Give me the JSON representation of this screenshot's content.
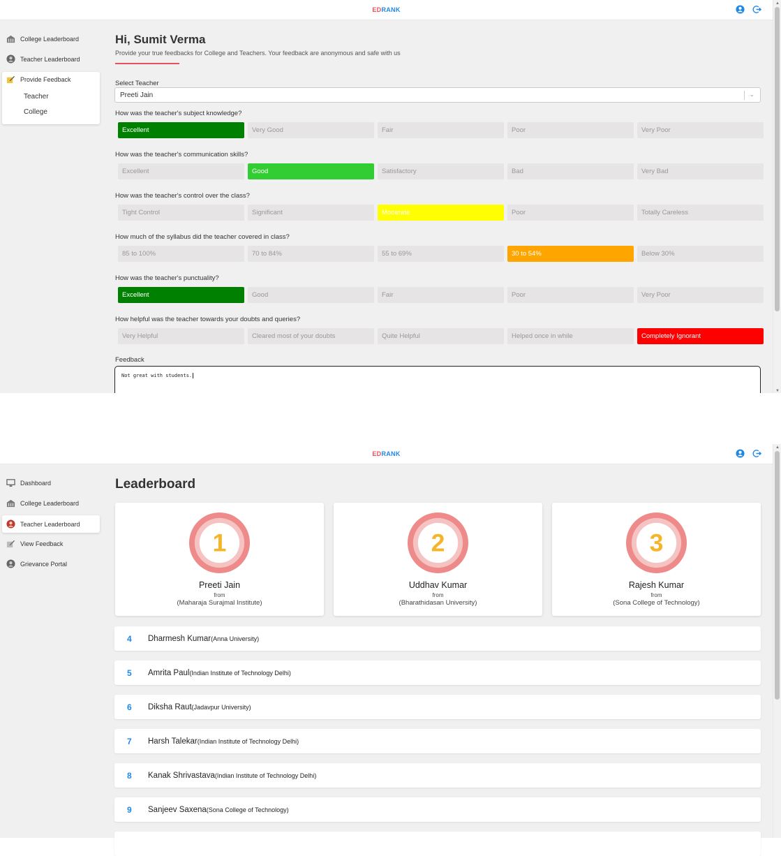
{
  "app": {
    "brand_ed": "ED",
    "brand_rank": "RANK"
  },
  "feedback_page": {
    "sidebar": {
      "college_leaderboard": "College Leaderboard",
      "teacher_leaderboard": "Teacher Leaderboard",
      "provide_feedback": "Provide Feedback",
      "sub_teacher": "Teacher",
      "sub_college": "College"
    },
    "greeting": "Hi, Sumit Verma",
    "subtitle": "Provide your true feedbacks for College and Teachers. Your feedback are anonymous and safe with us",
    "select_label": "Select Teacher",
    "selected_teacher": "Preeti Jain",
    "questions": [
      {
        "q": "How was the teacher's subject knowledge?",
        "options": [
          "Excellent",
          "Very Good",
          "Fair",
          "Poor",
          "Very Poor"
        ],
        "selected": 0,
        "selected_color": "#008000"
      },
      {
        "q": "How was the teacher's communication skills?",
        "options": [
          "Excellent",
          "Good",
          "Satisfactory",
          "Bad",
          "Very Bad"
        ],
        "selected": 1,
        "selected_color": "#32cd32"
      },
      {
        "q": "How was the teacher's control over the class?",
        "options": [
          "Tight Control",
          "Significant",
          "Moderate",
          "Poor",
          "Totally Careless"
        ],
        "selected": 2,
        "selected_color": "#ffff00"
      },
      {
        "q": "How much of the syllabus did the teacher covered in class?",
        "options": [
          "85 to 100%",
          "70 to 84%",
          "55 to 69%",
          "30 to 54%",
          "Below 30%"
        ],
        "selected": 3,
        "selected_color": "#ffa500"
      },
      {
        "q": "How was the teacher's punctuality?",
        "options": [
          "Excellent",
          "Good",
          "Fair",
          "Poor",
          "Very Poor"
        ],
        "selected": 0,
        "selected_color": "#008000"
      },
      {
        "q": "How helpful was the teacher towards your doubts and queries?",
        "options": [
          "Very Helpful",
          "Cleared most of your doubts",
          "Quite Helpful",
          "Helped once in while",
          "Completely Ignorant"
        ],
        "selected": 4,
        "selected_color": "#ff0000"
      }
    ],
    "feedback_label": "Feedback",
    "feedback_text": "Not great with students."
  },
  "leaderboard_page": {
    "sidebar": {
      "dashboard": "Dashboard",
      "college_leaderboard": "College Leaderboard",
      "teacher_leaderboard": "Teacher Leaderboard",
      "view_feedback": "View Feedback",
      "grievance_portal": "Grievance Portal"
    },
    "title": "Leaderboard",
    "from_label": "from",
    "top3": [
      {
        "rank": "1",
        "name": "Preeti Jain",
        "institute": "(Maharaja Surajmal Institute)"
      },
      {
        "rank": "2",
        "name": "Uddhav Kumar",
        "institute": "(Bharathidasan University)"
      },
      {
        "rank": "3",
        "name": "Rajesh Kumar",
        "institute": "(Sona College of Technology)"
      }
    ],
    "rows": [
      {
        "rank": "4",
        "name": "Dharmesh Kumar",
        "institute": "(Anna University)"
      },
      {
        "rank": "5",
        "name": "Amrita Paul",
        "institute": "(Indian Institute of Technology Delhi)"
      },
      {
        "rank": "6",
        "name": "Diksha Raut",
        "institute": "(Jadavpur University)"
      },
      {
        "rank": "7",
        "name": "Harsh Talekar",
        "institute": "(Indian Institute of Technology Delhi)"
      },
      {
        "rank": "8",
        "name": "Kanak Shrivastava",
        "institute": "(Indian Institute of Technology Delhi)"
      },
      {
        "rank": "9",
        "name": "Sanjeev Saxena",
        "institute": "(Sona College of Technology)"
      }
    ]
  },
  "colors": {
    "accent_red": "#e8505b",
    "accent_blue": "#1e88e5",
    "medal_outer": "#ee8a8a",
    "medal_inner": "#f6c3c3",
    "medal_digit": "#f5b52a"
  }
}
